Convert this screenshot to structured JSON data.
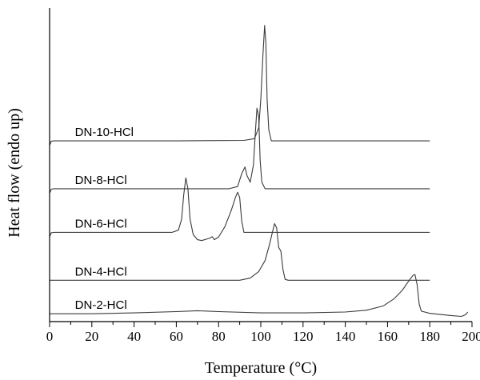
{
  "chart_data": {
    "type": "line",
    "xlabel": "Temperature (°C)",
    "ylabel": "Heat flow (endo up)",
    "xlim": [
      0,
      200
    ],
    "xticks": [
      0,
      20,
      40,
      60,
      80,
      100,
      120,
      140,
      160,
      180,
      200
    ],
    "grid": false,
    "yticks": [],
    "legend": "none; series labels placed on curves",
    "series": [
      {
        "name": "DN-10-HCl",
        "baseline": 4.15,
        "points": [
          [
            0,
            4.05
          ],
          [
            0.8,
            4.14
          ],
          [
            2,
            4.15
          ],
          [
            60,
            4.15
          ],
          [
            92,
            4.16
          ],
          [
            97,
            4.2
          ],
          [
            99,
            4.45
          ],
          [
            100,
            5.1
          ],
          [
            101,
            6.1
          ],
          [
            101.8,
            6.8
          ],
          [
            102.4,
            6.4
          ],
          [
            103,
            5.1
          ],
          [
            103.8,
            4.4
          ],
          [
            105,
            4.15
          ],
          [
            180,
            4.15
          ]
        ]
      },
      {
        "name": "DN-8-HCl",
        "baseline": 3.05,
        "points": [
          [
            0,
            2.95
          ],
          [
            0.8,
            3.04
          ],
          [
            2,
            3.05
          ],
          [
            85,
            3.05
          ],
          [
            89,
            3.1
          ],
          [
            91,
            3.4
          ],
          [
            92.5,
            3.55
          ],
          [
            93.5,
            3.35
          ],
          [
            95,
            3.2
          ],
          [
            96.5,
            3.6
          ],
          [
            97.5,
            4.4
          ],
          [
            98.2,
            4.9
          ],
          [
            99,
            4.7
          ],
          [
            99.7,
            3.7
          ],
          [
            100.5,
            3.2
          ],
          [
            102,
            3.05
          ],
          [
            180,
            3.05
          ]
        ]
      },
      {
        "name": "DN-6-HCl",
        "baseline": 2.05,
        "points": [
          [
            0,
            1.95
          ],
          [
            0.8,
            2.04
          ],
          [
            2,
            2.05
          ],
          [
            58,
            2.05
          ],
          [
            61,
            2.1
          ],
          [
            62.5,
            2.35
          ],
          [
            63.5,
            2.9
          ],
          [
            64.5,
            3.3
          ],
          [
            65.5,
            3.05
          ],
          [
            66.5,
            2.35
          ],
          [
            68,
            2.0
          ],
          [
            70,
            1.88
          ],
          [
            72,
            1.86
          ],
          [
            74,
            1.89
          ],
          [
            76,
            1.92
          ],
          [
            77,
            1.95
          ],
          [
            78,
            1.88
          ],
          [
            80,
            1.94
          ],
          [
            83,
            2.18
          ],
          [
            86,
            2.55
          ],
          [
            88,
            2.85
          ],
          [
            89,
            2.97
          ],
          [
            90,
            2.85
          ],
          [
            91,
            2.3
          ],
          [
            92,
            2.05
          ],
          [
            94,
            2.05
          ],
          [
            180,
            2.05
          ]
        ]
      },
      {
        "name": "DN-4-HCl",
        "baseline": 0.95,
        "points": [
          [
            0,
            0.95
          ],
          [
            90,
            0.95
          ],
          [
            95,
            1.0
          ],
          [
            99,
            1.15
          ],
          [
            102,
            1.4
          ],
          [
            104,
            1.75
          ],
          [
            105.5,
            2.05
          ],
          [
            106.5,
            2.25
          ],
          [
            107.5,
            2.15
          ],
          [
            108.5,
            1.7
          ],
          [
            109.5,
            1.62
          ],
          [
            110.5,
            1.2
          ],
          [
            111.5,
            0.97
          ],
          [
            113,
            0.95
          ],
          [
            180,
            0.95
          ]
        ]
      },
      {
        "name": "DN-2-HCl",
        "baseline": 0.18,
        "points": [
          [
            0,
            0.18
          ],
          [
            20,
            0.18
          ],
          [
            40,
            0.2
          ],
          [
            60,
            0.23
          ],
          [
            70,
            0.25
          ],
          [
            80,
            0.23
          ],
          [
            100,
            0.2
          ],
          [
            120,
            0.2
          ],
          [
            140,
            0.22
          ],
          [
            150,
            0.26
          ],
          [
            158,
            0.36
          ],
          [
            163,
            0.52
          ],
          [
            167,
            0.72
          ],
          [
            170,
            0.93
          ],
          [
            172,
            1.06
          ],
          [
            173,
            1.08
          ],
          [
            174,
            0.85
          ],
          [
            175,
            0.4
          ],
          [
            176,
            0.24
          ],
          [
            180,
            0.19
          ],
          [
            190,
            0.14
          ],
          [
            195,
            0.12
          ],
          [
            197,
            0.16
          ],
          [
            198,
            0.22
          ]
        ]
      }
    ]
  }
}
